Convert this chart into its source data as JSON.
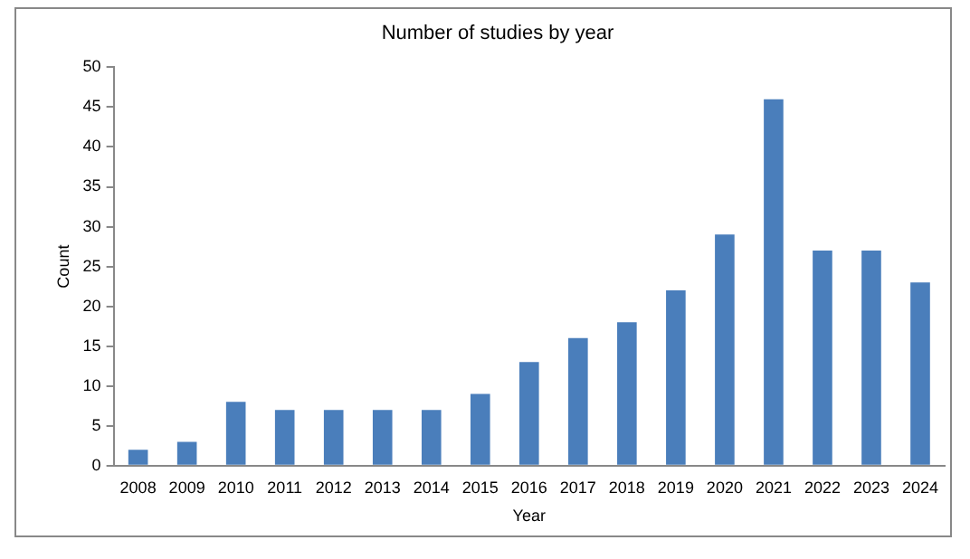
{
  "chart_data": {
    "type": "bar",
    "title": "Number of studies by year",
    "xlabel": "Year",
    "ylabel": "Count",
    "categories": [
      "2008",
      "2009",
      "2010",
      "2011",
      "2012",
      "2013",
      "2014",
      "2015",
      "2016",
      "2017",
      "2018",
      "2019",
      "2020",
      "2021",
      "2022",
      "2023",
      "2024"
    ],
    "values": [
      2,
      3,
      8,
      7,
      7,
      7,
      7,
      9,
      13,
      16,
      18,
      22,
      29,
      46,
      27,
      27,
      23
    ],
    "color": "#4a7ebb",
    "ylim": [
      0,
      50
    ],
    "yticks": [
      0,
      5,
      10,
      15,
      20,
      25,
      30,
      35,
      40,
      45,
      50
    ],
    "grid": false,
    "legend": false
  }
}
